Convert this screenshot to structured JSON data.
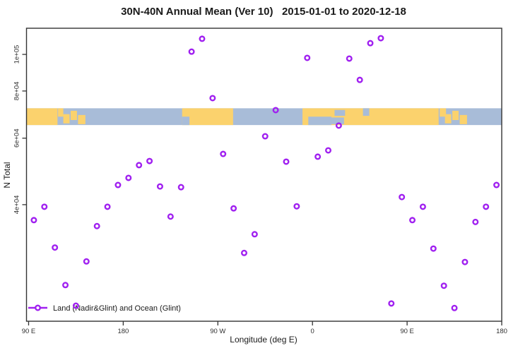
{
  "chart_data": {
    "type": "scatter",
    "title": "30N-40N Annual Mean (Ver 10)   2015-01-01 to 2020-12-18",
    "xlabel": "Longitude (deg E)",
    "ylabel": "N Total",
    "y_scale": "log10",
    "xlim": [
      88,
      540
    ],
    "ylim": [
      19650,
      117300
    ],
    "x_ticks": [
      {
        "lon": 90,
        "label": "90 E"
      },
      {
        "lon": 180,
        "label": "180"
      },
      {
        "lon": 270,
        "label": "90 W"
      },
      {
        "lon": 360,
        "label": "0"
      },
      {
        "lon": 450,
        "label": "90 E"
      },
      {
        "lon": 540,
        "label": "180"
      }
    ],
    "y_ticks": [
      {
        "value": 100000,
        "label": "1e+05"
      },
      {
        "value": 80000,
        "label": "8e+04"
      },
      {
        "value": 60000,
        "label": "6e+04"
      },
      {
        "value": 40000,
        "label": "4e+04"
      }
    ],
    "legend": {
      "label": "Land (Nadir&Glint) and Ocean (Glint)"
    },
    "colors": {
      "point": "#A020F0",
      "land": "#FBD26D",
      "ocean": "#A8BCD8",
      "axis": "#333333"
    },
    "map_band": {
      "value_top": 72000,
      "value_bottom": 65000,
      "land_segments": [
        {
          "lon": [
            88,
            117.5
          ],
          "frac": [
            0,
            1
          ]
        },
        {
          "lon": [
            118,
            123
          ],
          "frac": [
            0.0,
            0.5
          ]
        },
        {
          "lon": [
            123,
            129
          ],
          "frac": [
            0.35,
            0.9
          ]
        },
        {
          "lon": [
            130,
            136
          ],
          "frac": [
            0.15,
            0.7
          ]
        },
        {
          "lon": [
            137,
            144
          ],
          "frac": [
            0.4,
            0.95
          ]
        },
        {
          "lon": [
            236,
            284.5
          ],
          "frac": [
            0,
            1
          ]
        },
        {
          "lon": [
            350.5,
            480
          ],
          "frac": [
            0,
            1
          ]
        },
        {
          "lon": [
            481,
            487
          ],
          "frac": [
            0.0,
            0.5
          ]
        },
        {
          "lon": [
            486,
            492
          ],
          "frac": [
            0.35,
            0.9
          ]
        },
        {
          "lon": [
            493,
            499
          ],
          "frac": [
            0.15,
            0.7
          ]
        },
        {
          "lon": [
            500,
            507
          ],
          "frac": [
            0.4,
            0.95
          ]
        }
      ],
      "ocean_patches": [
        {
          "lon": [
            236,
            243
          ],
          "frac": [
            0.5,
            1
          ]
        },
        {
          "lon": [
            356,
            378
          ],
          "frac": [
            0.5,
            1
          ]
        },
        {
          "lon": [
            378,
            390
          ],
          "frac": [
            0.55,
            0.95
          ]
        },
        {
          "lon": [
            381,
            391
          ],
          "frac": [
            0.1,
            0.45
          ]
        },
        {
          "lon": [
            408,
            414
          ],
          "frac": [
            0,
            0.45
          ]
        }
      ]
    },
    "points": [
      [
        95,
        36400
      ],
      [
        105,
        39500
      ],
      [
        115,
        30800
      ],
      [
        125,
        24500
      ],
      [
        135,
        21600
      ],
      [
        145,
        28300
      ],
      [
        155,
        35100
      ],
      [
        165,
        39500
      ],
      [
        175,
        45100
      ],
      [
        185,
        47100
      ],
      [
        195,
        50900
      ],
      [
        205,
        52200
      ],
      [
        215,
        44700
      ],
      [
        225,
        37200
      ],
      [
        235,
        44500
      ],
      [
        245,
        101700
      ],
      [
        255,
        110000
      ],
      [
        265,
        76600
      ],
      [
        275,
        54500
      ],
      [
        285,
        39100
      ],
      [
        295,
        29800
      ],
      [
        305,
        33400
      ],
      [
        315,
        60700
      ],
      [
        325,
        71200
      ],
      [
        335,
        52000
      ],
      [
        345,
        39600
      ],
      [
        355,
        97900
      ],
      [
        365,
        53600
      ],
      [
        375,
        55700
      ],
      [
        385,
        64800
      ],
      [
        395,
        97500
      ],
      [
        405,
        85600
      ],
      [
        415,
        107100
      ],
      [
        425,
        110400
      ],
      [
        435,
        21900
      ],
      [
        445,
        41900
      ],
      [
        455,
        36400
      ],
      [
        465,
        39500
      ],
      [
        475,
        30600
      ],
      [
        485,
        24400
      ],
      [
        495,
        21300
      ],
      [
        505,
        28200
      ],
      [
        515,
        36000
      ],
      [
        525,
        39500
      ],
      [
        535,
        45100
      ]
    ]
  }
}
